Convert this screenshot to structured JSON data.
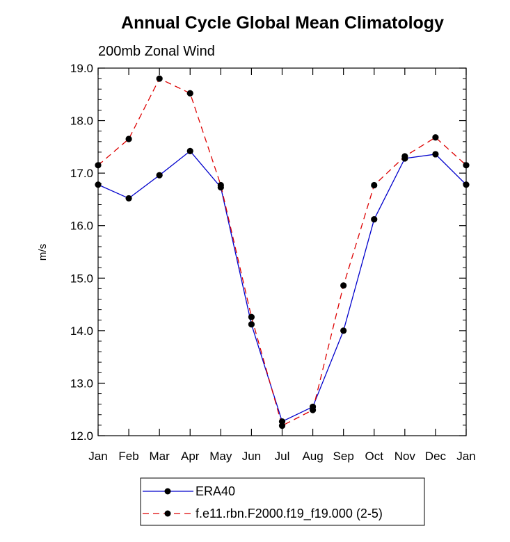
{
  "chart_data": {
    "type": "line",
    "title": "Annual Cycle Global Mean Climatology",
    "subtitle": "200mb Zonal Wind",
    "ylabel": "m/s",
    "xlabel": "",
    "categories": [
      "Jan",
      "Feb",
      "Mar",
      "Apr",
      "May",
      "Jun",
      "Jul",
      "Aug",
      "Sep",
      "Oct",
      "Nov",
      "Dec",
      "Jan"
    ],
    "ylim": [
      12.0,
      19.0
    ],
    "yticks": [
      "12.0",
      "13.0",
      "14.0",
      "15.0",
      "16.0",
      "17.0",
      "18.0",
      "19.0"
    ],
    "series": [
      {
        "name": "ERA40",
        "color": "#0000cc",
        "dash": "solid",
        "values": [
          16.78,
          16.52,
          16.96,
          17.42,
          16.73,
          14.12,
          12.27,
          12.55,
          14.0,
          16.12,
          17.28,
          17.36,
          16.78
        ]
      },
      {
        "name": "f.e11.rbn.F2000.f19_f19.000 (2-5)",
        "color": "#dd0000",
        "dash": "dashed",
        "values": [
          17.15,
          17.65,
          18.8,
          18.52,
          16.77,
          14.26,
          12.19,
          12.49,
          14.86,
          16.77,
          17.32,
          17.68,
          17.15
        ]
      }
    ],
    "grid": false,
    "legend_position": "bottom"
  }
}
